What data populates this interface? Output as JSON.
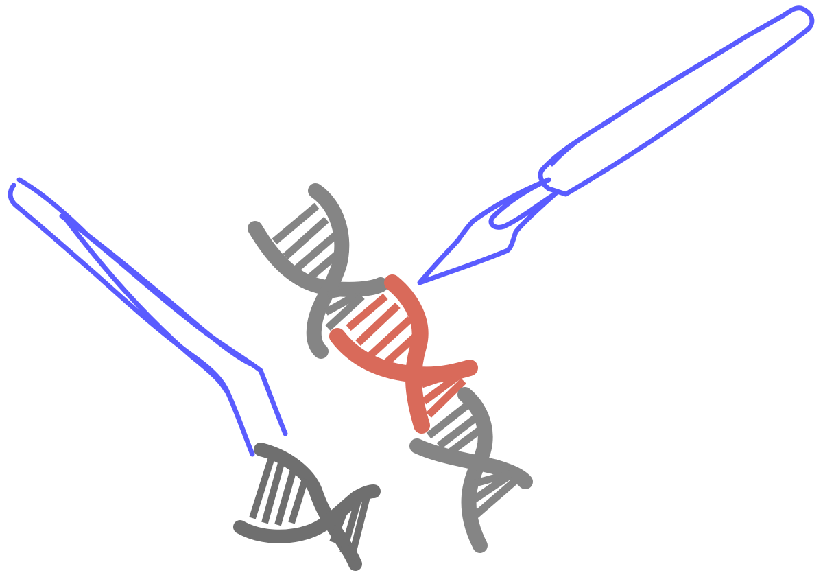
{
  "colors": {
    "tool_outline": "#5a5cff",
    "dna_gray": "#858585",
    "dna_dark_gray": "#6f6f6f",
    "dna_edited": "#d96a5a",
    "background": "#ffffff"
  },
  "icons": [
    "scalpel-icon",
    "tweezers-icon",
    "dna-helix-icon",
    "dna-edited-segment-icon",
    "dna-excised-fragment-icon"
  ]
}
